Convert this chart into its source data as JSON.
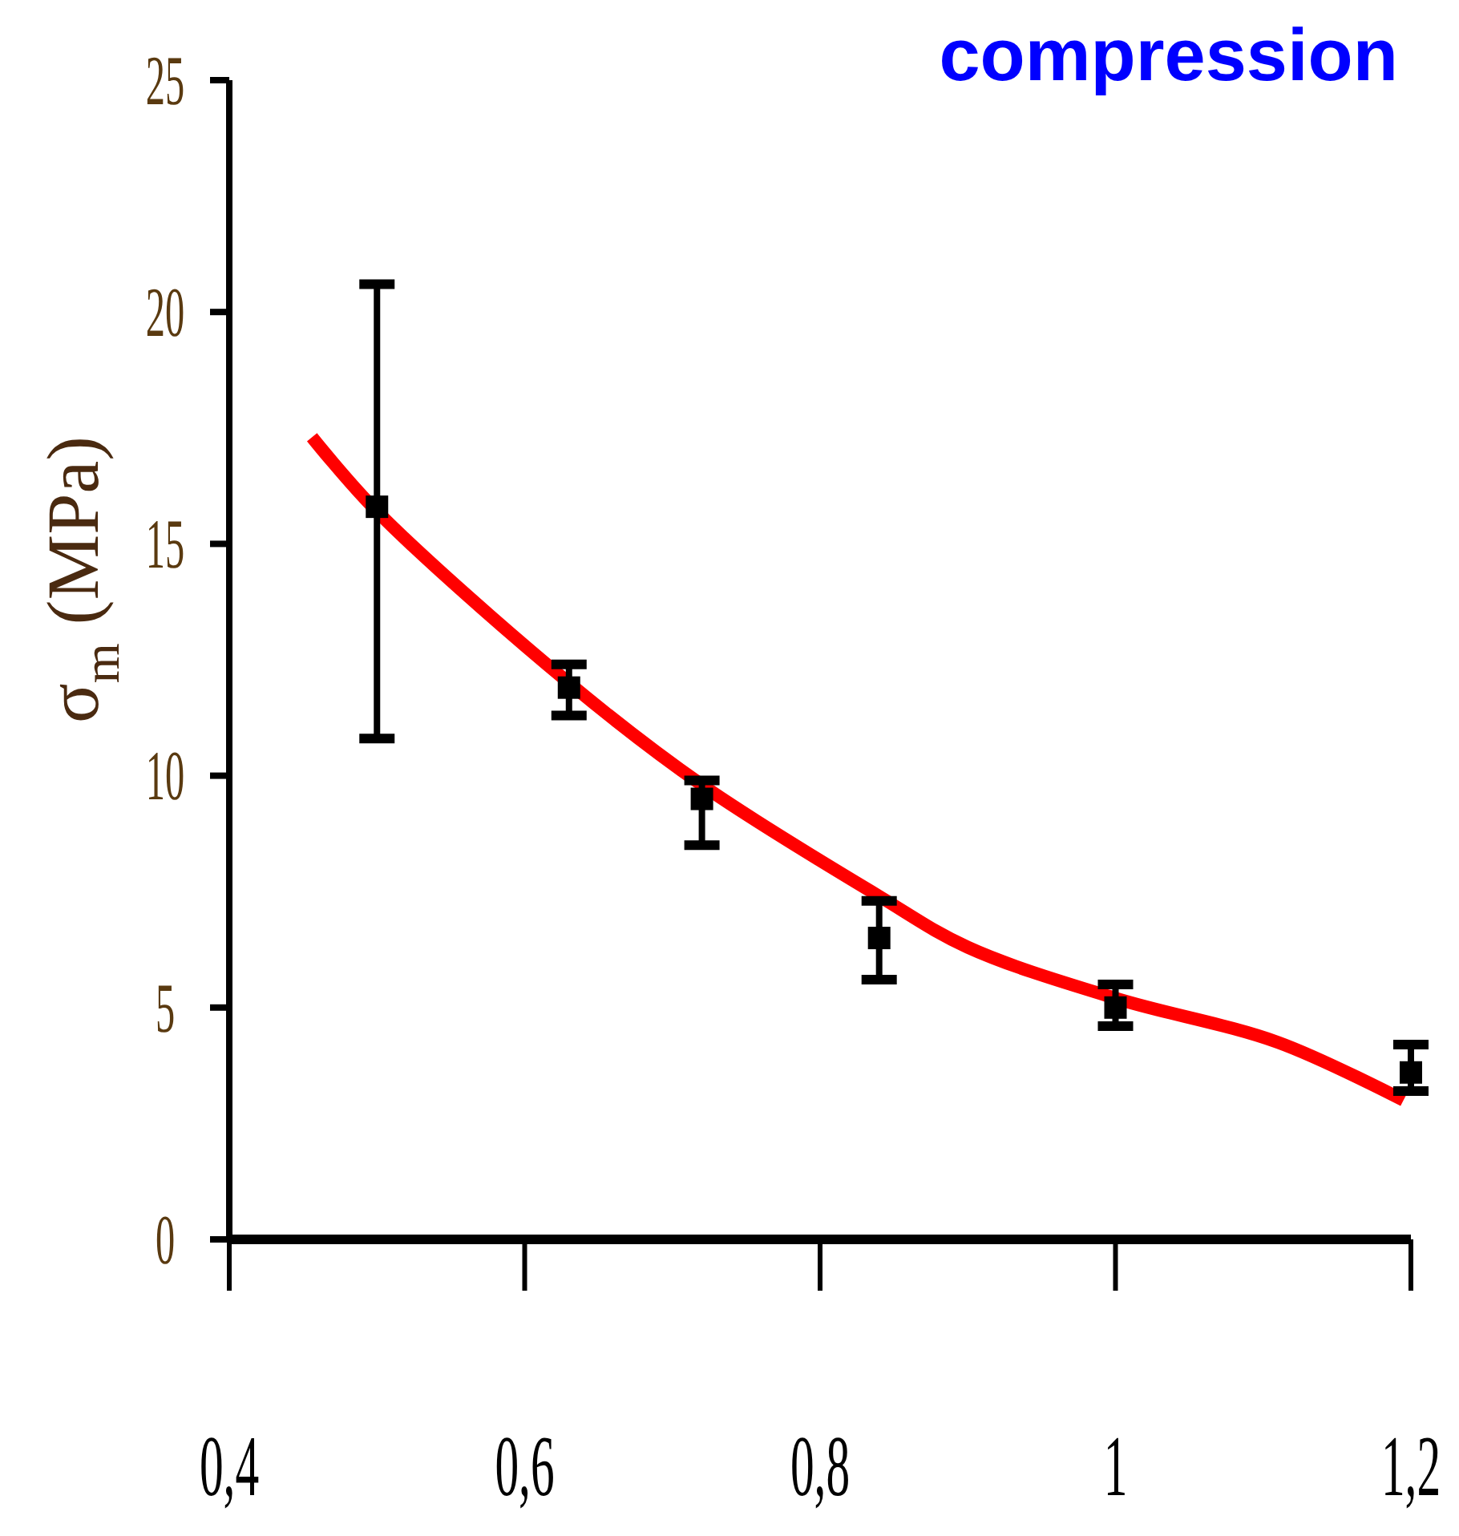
{
  "chart_data": {
    "type": "scatter",
    "title": "compression",
    "ylabel": "σ$_{m}$ (MPa)",
    "xlim": [
      0.4,
      1.2
    ],
    "xticks": [
      {
        "value": 0.4,
        "label": "0,4"
      },
      {
        "value": 0.6,
        "label": "0,6"
      },
      {
        "value": 0.8,
        "label": "0,8"
      },
      {
        "value": 1,
        "label": "1"
      },
      {
        "value": 1.2,
        "label": "1,2"
      }
    ],
    "ylim": [
      0,
      25
    ],
    "yticks": [
      0,
      5,
      10,
      15,
      20,
      25
    ],
    "grid": false,
    "marker": "square",
    "series": [
      {
        "color": "#000000",
        "x": [
          0.5,
          0.63,
          0.72,
          0.84,
          1.0,
          1.2
        ],
        "values": [
          15.8,
          11.9,
          9.5,
          6.5,
          5.0,
          3.6
        ],
        "errors": [
          [
            10.8,
            20.6
          ],
          [
            11.3,
            12.4
          ],
          [
            8.5,
            9.9
          ],
          [
            5.6,
            7.3
          ],
          [
            4.6,
            5.5
          ],
          [
            3.2,
            4.2
          ]
        ]
      },
      {
        "type": "line",
        "color": "#ff0000",
        "marker": "none",
        "line_style": "solid",
        "x": [
          0.456,
          0.5,
          0.63,
          0.72,
          0.84,
          0.9,
          1.0,
          1.11,
          1.195
        ],
        "values": [
          17.3,
          15.7,
          12.0,
          9.8,
          7.4,
          6.3,
          5.2,
          4.25,
          3.0
        ]
      }
    ]
  }
}
